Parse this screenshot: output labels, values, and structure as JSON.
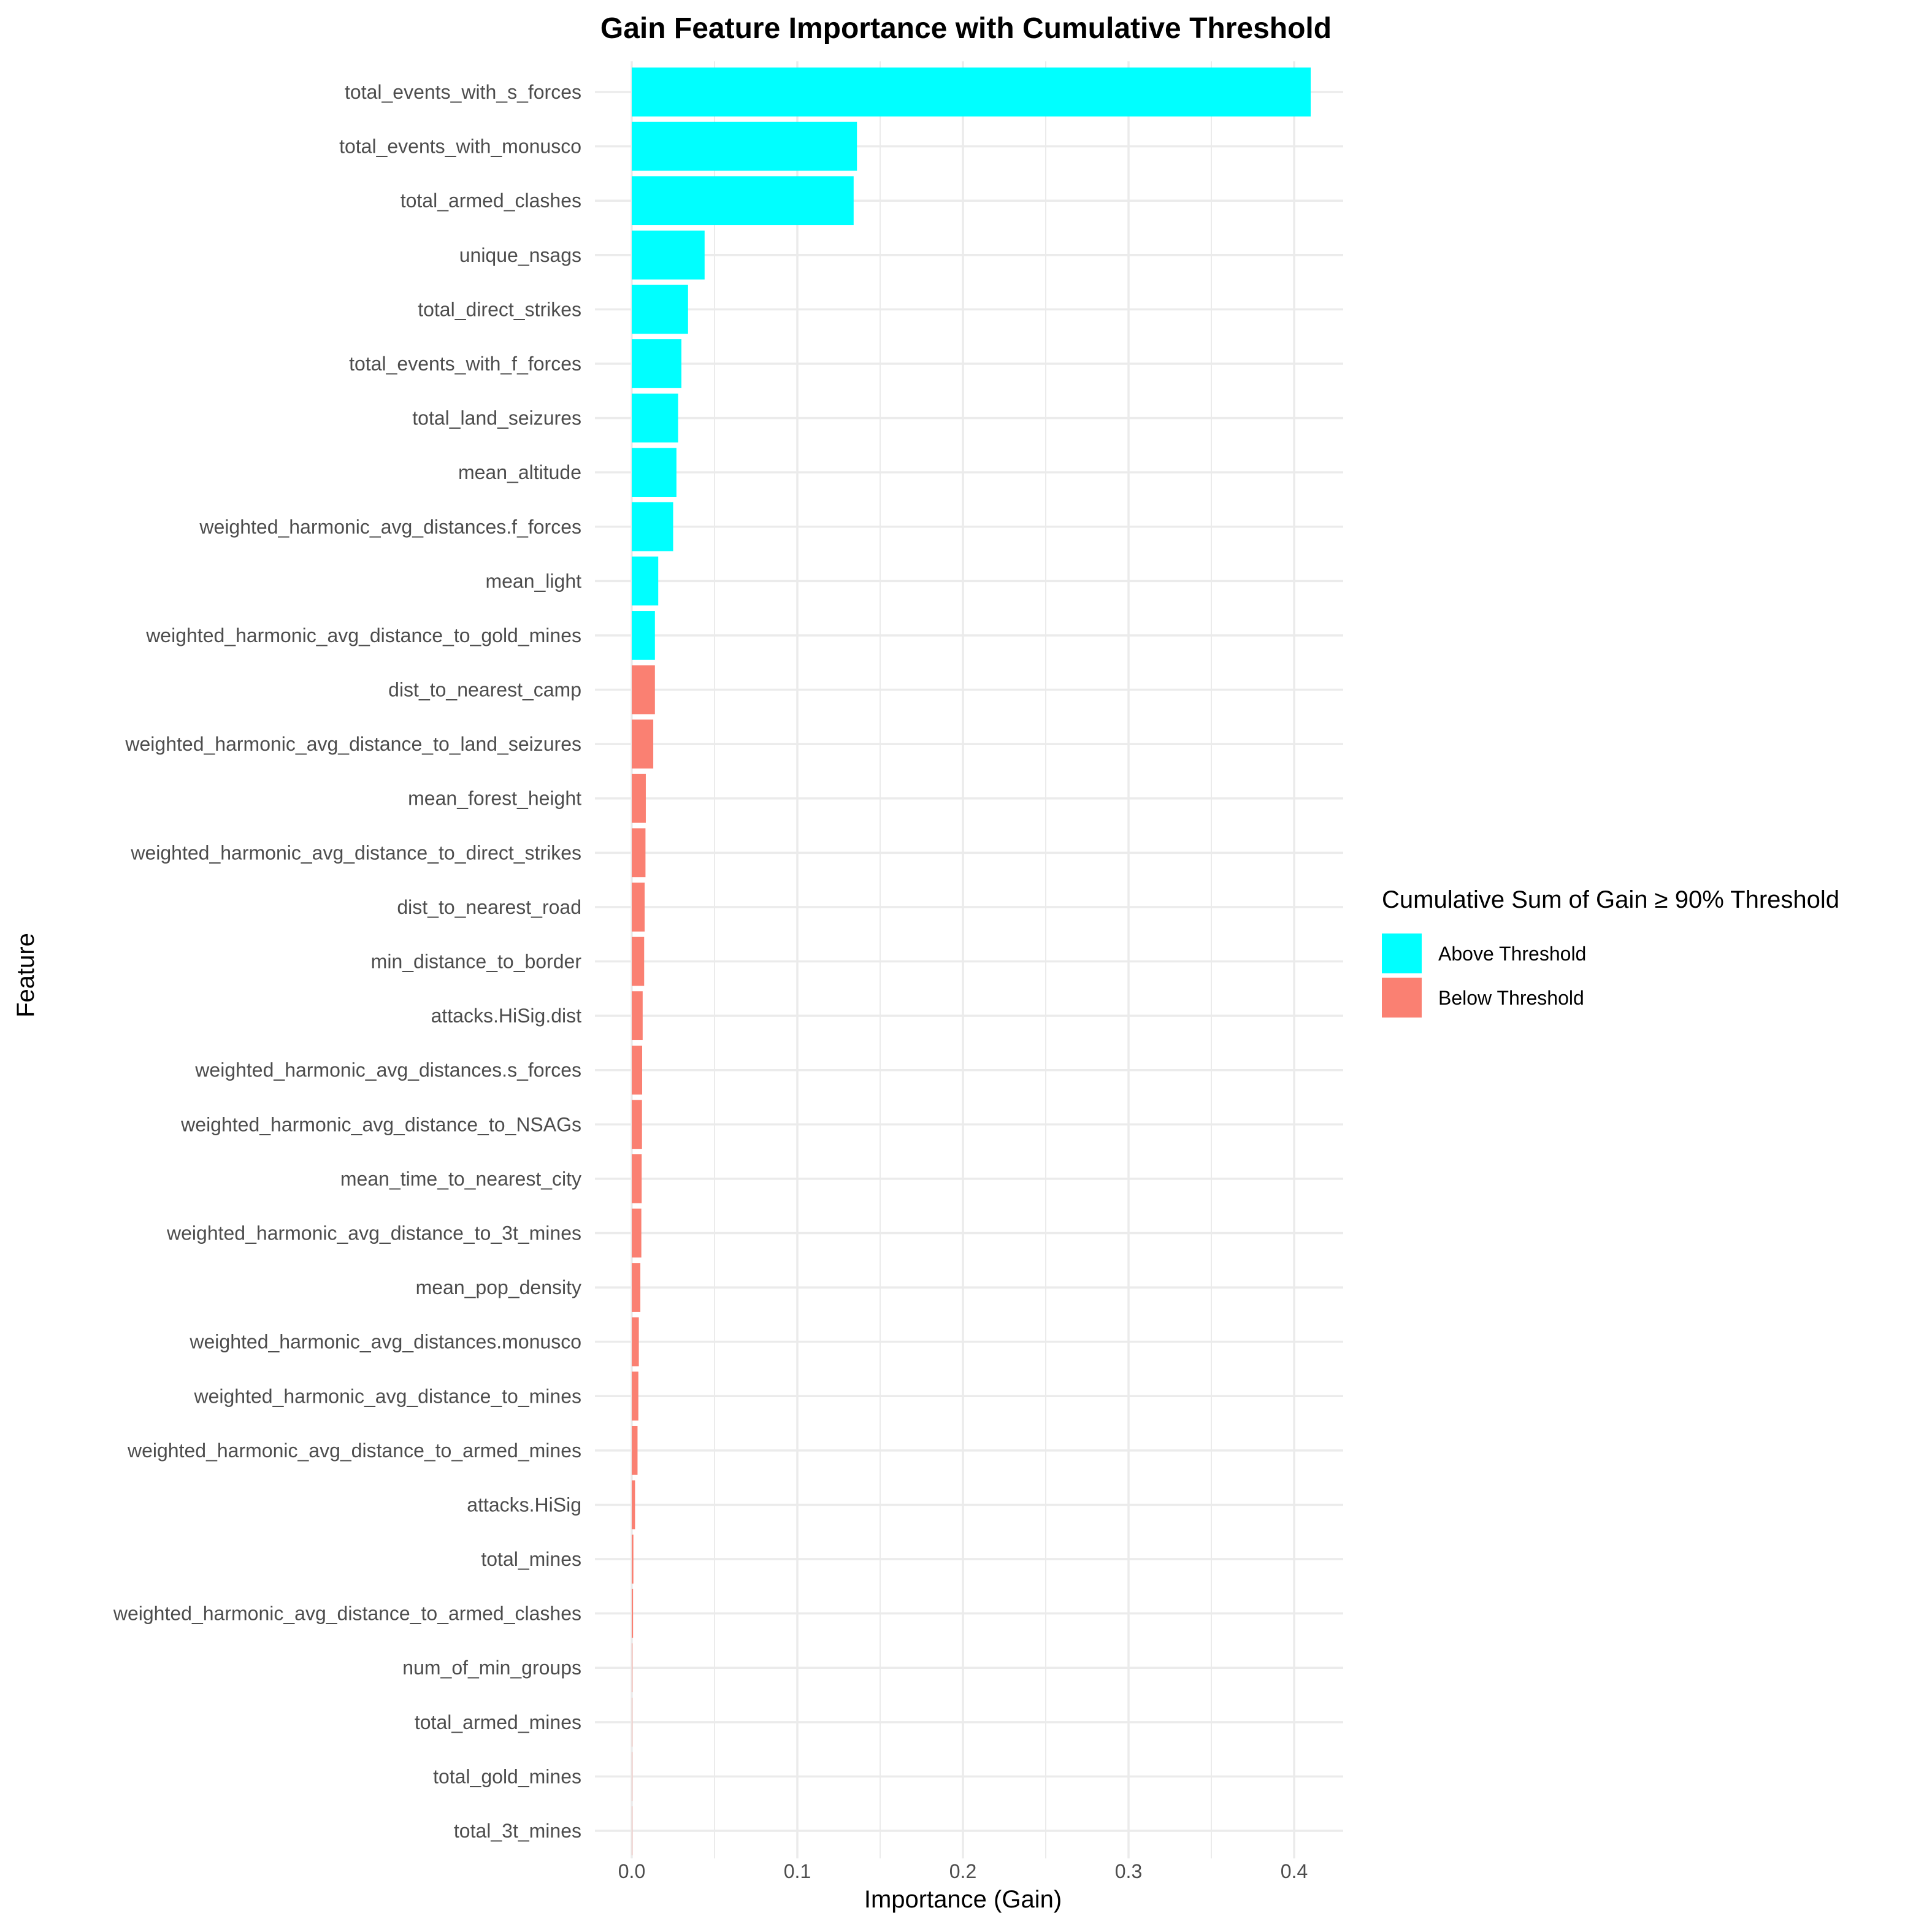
{
  "chart_data": {
    "type": "bar",
    "orientation": "horizontal",
    "title": "Gain Feature Importance with Cumulative Threshold",
    "xlabel": "Importance (Gain)",
    "ylabel": "Feature",
    "xlim": [
      0,
      0.43
    ],
    "xticks": [
      0.0,
      0.1,
      0.2,
      0.3,
      0.4
    ],
    "xtick_labels": [
      "0.0",
      "0.1",
      "0.2",
      "0.3",
      "0.4"
    ],
    "grid": true,
    "legend": {
      "title": "Cumulative Sum of Gain ≥ 90% Threshold",
      "placement": "right",
      "entries": [
        {
          "label": "Above Threshold",
          "color": "#00ffff"
        },
        {
          "label": "Below Threshold",
          "color": "#fa8072"
        }
      ]
    },
    "bars": [
      {
        "feature": "total_events_with_s_forces",
        "value": 0.41,
        "group": "Above Threshold"
      },
      {
        "feature": "total_events_with_monusco",
        "value": 0.136,
        "group": "Above Threshold"
      },
      {
        "feature": "total_armed_clashes",
        "value": 0.134,
        "group": "Above Threshold"
      },
      {
        "feature": "unique_nsags",
        "value": 0.044,
        "group": "Above Threshold"
      },
      {
        "feature": "total_direct_strikes",
        "value": 0.034,
        "group": "Above Threshold"
      },
      {
        "feature": "total_events_with_f_forces",
        "value": 0.03,
        "group": "Above Threshold"
      },
      {
        "feature": "total_land_seizures",
        "value": 0.028,
        "group": "Above Threshold"
      },
      {
        "feature": "mean_altitude",
        "value": 0.027,
        "group": "Above Threshold"
      },
      {
        "feature": "weighted_harmonic_avg_distances.f_forces",
        "value": 0.025,
        "group": "Above Threshold"
      },
      {
        "feature": "mean_light",
        "value": 0.016,
        "group": "Above Threshold"
      },
      {
        "feature": "weighted_harmonic_avg_distance_to_gold_mines",
        "value": 0.014,
        "group": "Above Threshold"
      },
      {
        "feature": "dist_to_nearest_camp",
        "value": 0.014,
        "group": "Below Threshold"
      },
      {
        "feature": "weighted_harmonic_avg_distance_to_land_seizures",
        "value": 0.013,
        "group": "Below Threshold"
      },
      {
        "feature": "mean_forest_height",
        "value": 0.0085,
        "group": "Below Threshold"
      },
      {
        "feature": "weighted_harmonic_avg_distance_to_direct_strikes",
        "value": 0.0083,
        "group": "Below Threshold"
      },
      {
        "feature": "dist_to_nearest_road",
        "value": 0.0078,
        "group": "Below Threshold"
      },
      {
        "feature": "min_distance_to_border",
        "value": 0.0075,
        "group": "Below Threshold"
      },
      {
        "feature": "attacks.HiSig.dist",
        "value": 0.0066,
        "group": "Below Threshold"
      },
      {
        "feature": "weighted_harmonic_avg_distances.s_forces",
        "value": 0.0063,
        "group": "Below Threshold"
      },
      {
        "feature": "weighted_harmonic_avg_distance_to_NSAGs",
        "value": 0.0062,
        "group": "Below Threshold"
      },
      {
        "feature": "mean_time_to_nearest_city",
        "value": 0.006,
        "group": "Below Threshold"
      },
      {
        "feature": "weighted_harmonic_avg_distance_to_3t_mines",
        "value": 0.0058,
        "group": "Below Threshold"
      },
      {
        "feature": "mean_pop_density",
        "value": 0.0052,
        "group": "Below Threshold"
      },
      {
        "feature": "weighted_harmonic_avg_distances.monusco",
        "value": 0.0043,
        "group": "Below Threshold"
      },
      {
        "feature": "weighted_harmonic_avg_distance_to_mines",
        "value": 0.004,
        "group": "Below Threshold"
      },
      {
        "feature": "weighted_harmonic_avg_distance_to_armed_mines",
        "value": 0.0035,
        "group": "Below Threshold"
      },
      {
        "feature": "attacks.HiSig",
        "value": 0.002,
        "group": "Below Threshold"
      },
      {
        "feature": "total_mines",
        "value": 0.001,
        "group": "Below Threshold"
      },
      {
        "feature": "weighted_harmonic_avg_distance_to_armed_clashes",
        "value": 0.0008,
        "group": "Below Threshold"
      },
      {
        "feature": "num_of_min_groups",
        "value": 0.0004,
        "group": "Below Threshold"
      },
      {
        "feature": "total_armed_mines",
        "value": 0.0003,
        "group": "Below Threshold"
      },
      {
        "feature": "total_gold_mines",
        "value": 0.0002,
        "group": "Below Threshold"
      },
      {
        "feature": "total_3t_mines",
        "value": 0.0001,
        "group": "Below Threshold"
      }
    ]
  }
}
